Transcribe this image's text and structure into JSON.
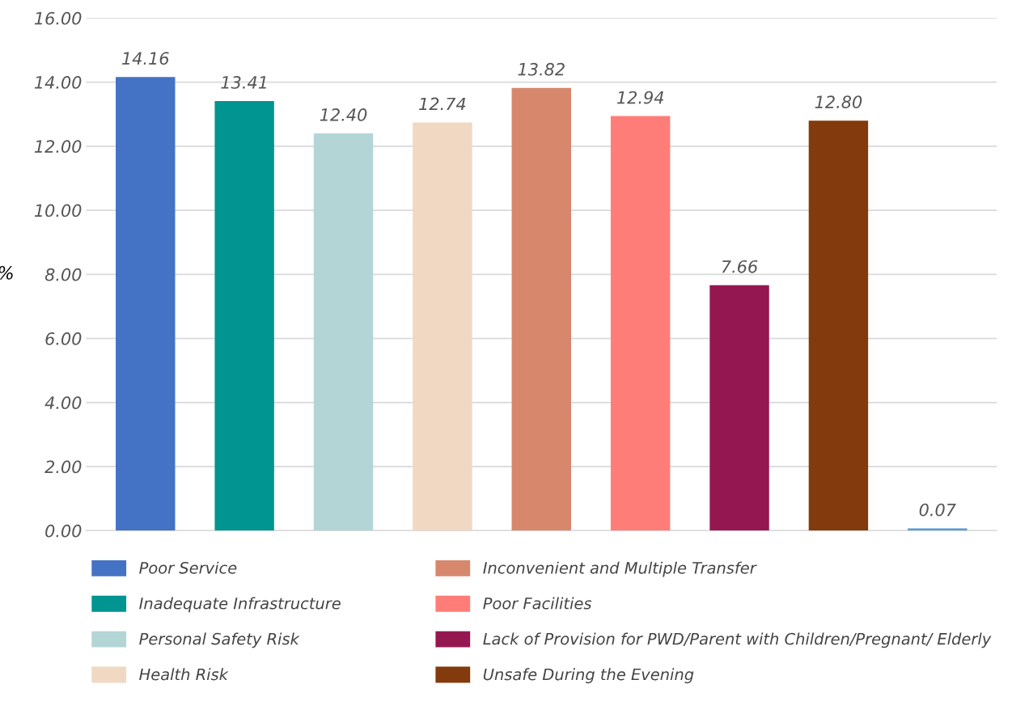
{
  "chart_data": {
    "type": "bar",
    "ylabel": "%",
    "categories": [
      null,
      null,
      null,
      null,
      null,
      null,
      null,
      null,
      null
    ],
    "series": [
      {
        "name": "Poor Service",
        "color": "#4472c4",
        "values": [
          14.16,
          null,
          null,
          null,
          null,
          null,
          null,
          null,
          null
        ],
        "value_labels": [
          "14.16",
          null,
          null,
          null,
          null,
          null,
          null,
          null,
          null
        ]
      },
      {
        "name": "Inadequate Infrastructure",
        "color": "#009590",
        "values": [
          null,
          13.41,
          null,
          null,
          null,
          null,
          null,
          null,
          null
        ],
        "value_labels": [
          null,
          "13.41",
          null,
          null,
          null,
          null,
          null,
          null,
          null
        ]
      },
      {
        "name": "Personal Safety Risk",
        "color": "#b4d5d6",
        "values": [
          null,
          null,
          12.4,
          null,
          null,
          null,
          null,
          null,
          null
        ],
        "value_labels": [
          null,
          null,
          "12.40",
          null,
          null,
          null,
          null,
          null,
          null
        ]
      },
      {
        "name": "Health Risk",
        "color": "#f0d8c2",
        "values": [
          null,
          null,
          null,
          12.74,
          null,
          null,
          null,
          null,
          null
        ],
        "value_labels": [
          null,
          null,
          null,
          "12.74",
          null,
          null,
          null,
          null,
          null
        ]
      },
      {
        "name": "Inconvenient and Multiple Transfer",
        "color": "#d6876c",
        "values": [
          null,
          null,
          null,
          null,
          13.82,
          null,
          null,
          null,
          null
        ],
        "value_labels": [
          null,
          null,
          null,
          null,
          "13.82",
          null,
          null,
          null,
          null
        ]
      },
      {
        "name": "Poor Facilities",
        "color": "#ff7d78",
        "values": [
          null,
          null,
          null,
          null,
          null,
          12.94,
          null,
          null,
          null
        ],
        "value_labels": [
          null,
          null,
          null,
          null,
          null,
          "12.94",
          null,
          null,
          null
        ]
      },
      {
        "name": "Lack of Provision for PWD/Parent with Children/Pregnant/ Elderly",
        "color": "#951752",
        "values": [
          null,
          null,
          null,
          null,
          null,
          null,
          7.66,
          null,
          null
        ],
        "value_labels": [
          null,
          null,
          null,
          null,
          null,
          null,
          "7.66",
          null,
          null
        ]
      },
      {
        "name": "Unsafe During the Evening",
        "color": "#833a0c",
        "values": [
          null,
          null,
          null,
          null,
          null,
          null,
          null,
          12.8,
          null
        ],
        "value_labels": [
          null,
          null,
          null,
          null,
          null,
          null,
          null,
          "12.80",
          null
        ]
      },
      {
        "color": "#5b9bd5",
        "values": [
          null,
          null,
          null,
          null,
          null,
          null,
          null,
          null,
          0.07
        ],
        "value_labels": [
          null,
          null,
          null,
          null,
          null,
          null,
          null,
          null,
          "0.07"
        ]
      }
    ],
    "ylim": [
      0,
      16
    ],
    "yticks": [
      {
        "value": 0,
        "label": "0.00"
      },
      {
        "value": 2,
        "label": "2.00"
      },
      {
        "value": 4,
        "label": "4.00"
      },
      {
        "value": 6,
        "label": "6.00"
      },
      {
        "value": 8,
        "label": "8.00"
      },
      {
        "value": 10,
        "label": "10.00"
      },
      {
        "value": 12,
        "label": "12.00"
      },
      {
        "value": 14,
        "label": "14.00"
      },
      {
        "value": 16,
        "label": "16.00"
      }
    ],
    "grid": "y",
    "legend": "bottom"
  }
}
